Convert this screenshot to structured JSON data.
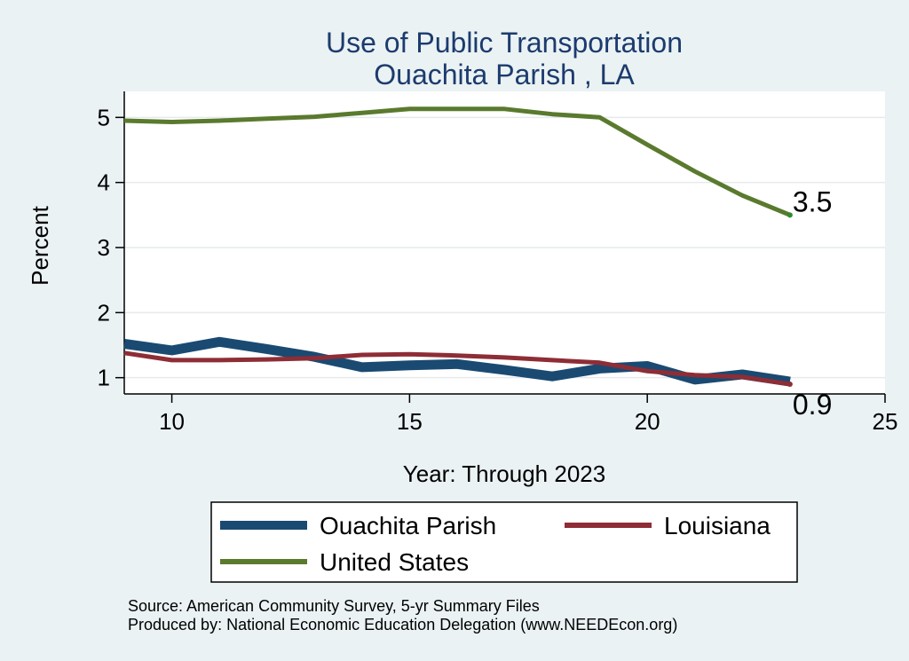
{
  "chart_data": {
    "type": "line",
    "title": "Use of Public Transportation",
    "subtitle": "Ouachita Parish , LA",
    "xlabel": "Year: Through 2023",
    "ylabel": "Percent",
    "xlim": [
      9,
      25
    ],
    "ylim": [
      0.75,
      5.4
    ],
    "x_ticks": [
      10,
      15,
      20,
      25
    ],
    "y_ticks": [
      1,
      2,
      3,
      4,
      5
    ],
    "grid": true,
    "legend_position": "bottom",
    "colors": {
      "ouachita": "#1a4a72",
      "louisiana": "#8e2d36",
      "us": "#5a7a2e",
      "plot_bg": "#ffffff",
      "page_bg": "#eaf2f3",
      "title": "#1c3b6e"
    },
    "x": [
      9,
      10,
      11,
      12,
      13,
      14,
      15,
      16,
      17,
      18,
      19,
      20,
      21,
      22,
      23
    ],
    "series": [
      {
        "name": "Ouachita Parish",
        "values": [
          1.52,
          1.42,
          1.55,
          1.44,
          1.32,
          1.16,
          1.19,
          1.21,
          1.12,
          1.02,
          1.14,
          1.18,
          0.97,
          1.05,
          0.94
        ]
      },
      {
        "name": "Louisiana",
        "values": [
          1.38,
          1.27,
          1.27,
          1.28,
          1.3,
          1.35,
          1.36,
          1.34,
          1.31,
          1.27,
          1.23,
          1.1,
          1.04,
          1.01,
          0.9
        ]
      },
      {
        "name": "United States",
        "values": [
          4.95,
          4.93,
          4.95,
          4.98,
          5.01,
          5.07,
          5.13,
          5.13,
          5.13,
          5.05,
          5.0,
          4.58,
          4.17,
          3.8,
          3.5
        ]
      }
    ],
    "end_labels": [
      "3.5",
      "0.9"
    ],
    "source": "Source: American Community Survey, 5-yr Summary Files",
    "producer": "Produced by: National Economic Education Delegation (www.NEEDEcon.org)"
  }
}
